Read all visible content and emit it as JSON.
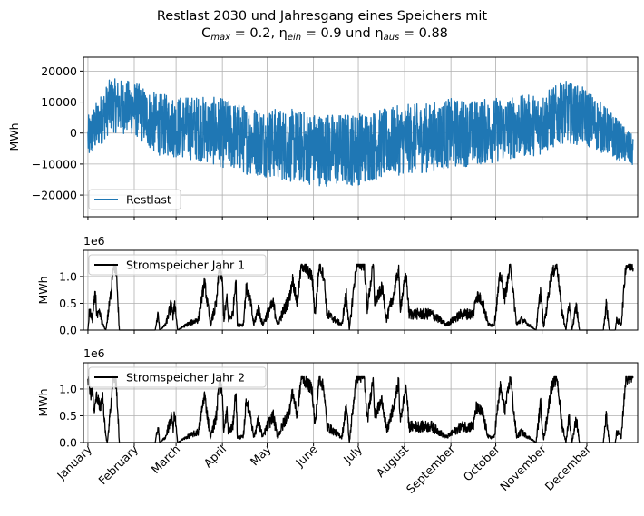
{
  "chart_data": [
    {
      "type": "line",
      "title_line1": "Restlast 2030 und Jahresgang eines Speichers mit",
      "title_line2_parts": [
        "C",
        "max",
        " = 0.2, η",
        "ein",
        " = 0.9 und η",
        "aus",
        " = 0.88"
      ],
      "ylabel": "MWh",
      "ylim": [
        -27000,
        24500
      ],
      "yticks": [
        20000,
        10000,
        0,
        -10000,
        -20000
      ],
      "ytick_labels": [
        "20000",
        "10000",
        "0",
        "−10000",
        "−20000"
      ],
      "legend": {
        "label": "Restlast",
        "placement": "lower-left"
      },
      "color": "#1f77b4",
      "grid": true,
      "series_note": "hourly residual load; semi-monthly mean and spread",
      "x_days": [
        0,
        15,
        31,
        45,
        59,
        75,
        90,
        105,
        120,
        135,
        151,
        166,
        181,
        196,
        212,
        227,
        243,
        258,
        273,
        288,
        304,
        319,
        334,
        349,
        365
      ],
      "mean": [
        -2000,
        9000,
        8000,
        3000,
        2000,
        1500,
        0,
        -2000,
        -3000,
        -4000,
        -5000,
        -5500,
        -5000,
        -3500,
        -2000,
        -1500,
        0,
        0,
        1000,
        2000,
        3000,
        7000,
        5000,
        0,
        -6000
      ],
      "spread": [
        6000,
        7000,
        7000,
        8000,
        8000,
        8500,
        9000,
        9000,
        9000,
        9500,
        9500,
        9500,
        9500,
        9000,
        9000,
        9000,
        9000,
        8500,
        8500,
        8000,
        8000,
        8000,
        7500,
        6000,
        4000
      ]
    },
    {
      "type": "line",
      "ylabel": "MWh",
      "offset_label": "1e6",
      "ylim": [
        0,
        1.49
      ],
      "yticks": [
        0.0,
        0.5,
        1.0
      ],
      "ytick_labels": [
        "0.0",
        "0.5",
        "1.0"
      ],
      "legend": {
        "label": "Stromspeicher Jahr 1",
        "placement": "upper-left"
      },
      "color": "#000000",
      "grid": true,
      "knots": [
        [
          0,
          0
        ],
        [
          1,
          0.35
        ],
        [
          3,
          0.2
        ],
        [
          5,
          0.7
        ],
        [
          6,
          0.25
        ],
        [
          8,
          0.3
        ],
        [
          10,
          0.1
        ],
        [
          12,
          0
        ],
        [
          15,
          0.6
        ],
        [
          17,
          1.23
        ],
        [
          19,
          1.1
        ],
        [
          21,
          0
        ],
        [
          45,
          0
        ],
        [
          47,
          0.3
        ],
        [
          48,
          0
        ],
        [
          52,
          0.1
        ],
        [
          56,
          0.5
        ],
        [
          57,
          0.2
        ],
        [
          58,
          0.55
        ],
        [
          60,
          0
        ],
        [
          66,
          0.1
        ],
        [
          74,
          0.2
        ],
        [
          78,
          0.9
        ],
        [
          80,
          0.5
        ],
        [
          82,
          0.1
        ],
        [
          86,
          0.5
        ],
        [
          88,
          1.2
        ],
        [
          90,
          0.9
        ],
        [
          91,
          0.2
        ],
        [
          93,
          0.6
        ],
        [
          94,
          0.2
        ],
        [
          97,
          0.3
        ],
        [
          99,
          1.0
        ],
        [
          100,
          0.1
        ],
        [
          104,
          0.1
        ],
        [
          106,
          0.8
        ],
        [
          109,
          0.5
        ],
        [
          111,
          0.1
        ],
        [
          114,
          0.4
        ],
        [
          117,
          0.1
        ],
        [
          120,
          0.3
        ],
        [
          124,
          0.5
        ],
        [
          127,
          0.1
        ],
        [
          130,
          0.3
        ],
        [
          135,
          0.6
        ],
        [
          137,
          0.95
        ],
        [
          140,
          0.5
        ],
        [
          143,
          1.23
        ],
        [
          150,
          1.0
        ],
        [
          152,
          0.3
        ],
        [
          155,
          1.23
        ],
        [
          158,
          1.0
        ],
        [
          160,
          0.3
        ],
        [
          165,
          0.2
        ],
        [
          170,
          0.1
        ],
        [
          173,
          0.7
        ],
        [
          175,
          0
        ],
        [
          178,
          0.8
        ],
        [
          180,
          1.23
        ],
        [
          185,
          1.23
        ],
        [
          187,
          0.4
        ],
        [
          191,
          1.23
        ],
        [
          192,
          0.5
        ],
        [
          197,
          0.8
        ],
        [
          200,
          0.2
        ],
        [
          205,
          0.7
        ],
        [
          208,
          1.15
        ],
        [
          209,
          0.4
        ],
        [
          213,
          1.05
        ],
        [
          215,
          0.3
        ],
        [
          230,
          0.3
        ],
        [
          240,
          0.1
        ],
        [
          250,
          0.3
        ],
        [
          258,
          0.3
        ],
        [
          260,
          0.65
        ],
        [
          264,
          0.55
        ],
        [
          268,
          0.1
        ],
        [
          272,
          0.1
        ],
        [
          276,
          1.05
        ],
        [
          279,
          0.6
        ],
        [
          283,
          1.23
        ],
        [
          285,
          0.6
        ],
        [
          287,
          0.1
        ],
        [
          290,
          0.2
        ],
        [
          295,
          0.1
        ],
        [
          300,
          0
        ],
        [
          303,
          0.75
        ],
        [
          305,
          0.05
        ],
        [
          307,
          0.4
        ],
        [
          310,
          1.0
        ],
        [
          314,
          1.23
        ],
        [
          317,
          0.4
        ],
        [
          320,
          0
        ],
        [
          322,
          0.5
        ],
        [
          324,
          0
        ],
        [
          327,
          0.45
        ],
        [
          329,
          0
        ],
        [
          345,
          0
        ],
        [
          347,
          0.5
        ],
        [
          349,
          0
        ],
        [
          353,
          0
        ],
        [
          354,
          0.2
        ],
        [
          357,
          0.1
        ],
        [
          360,
          1.2
        ],
        [
          365,
          1.22
        ]
      ]
    },
    {
      "type": "line",
      "ylabel": "MWh",
      "offset_label": "1e6",
      "ylim": [
        0,
        1.49
      ],
      "yticks": [
        0.0,
        0.5,
        1.0
      ],
      "ytick_labels": [
        "0.0",
        "0.5",
        "1.0"
      ],
      "legend": {
        "label": "Stromspeicher Jahr 2",
        "placement": "upper-left"
      },
      "color": "#000000",
      "grid": true,
      "knots_override_start": [
        [
          0,
          1.23
        ],
        [
          2,
          0.9
        ],
        [
          3,
          1.0
        ],
        [
          4,
          0.55
        ],
        [
          6,
          0.9
        ],
        [
          8,
          0.65
        ],
        [
          10,
          0.85
        ],
        [
          12,
          0.1
        ],
        [
          13,
          0
        ]
      ]
    }
  ],
  "xaxis": {
    "month_start_days": [
      0,
      31,
      59,
      90,
      120,
      151,
      181,
      212,
      243,
      273,
      304,
      334
    ],
    "month_labels": [
      "January",
      "February",
      "March",
      "April",
      "May",
      "June",
      "July",
      "August",
      "September",
      "October",
      "November",
      "December"
    ],
    "xlim_days": [
      -3,
      368
    ]
  }
}
